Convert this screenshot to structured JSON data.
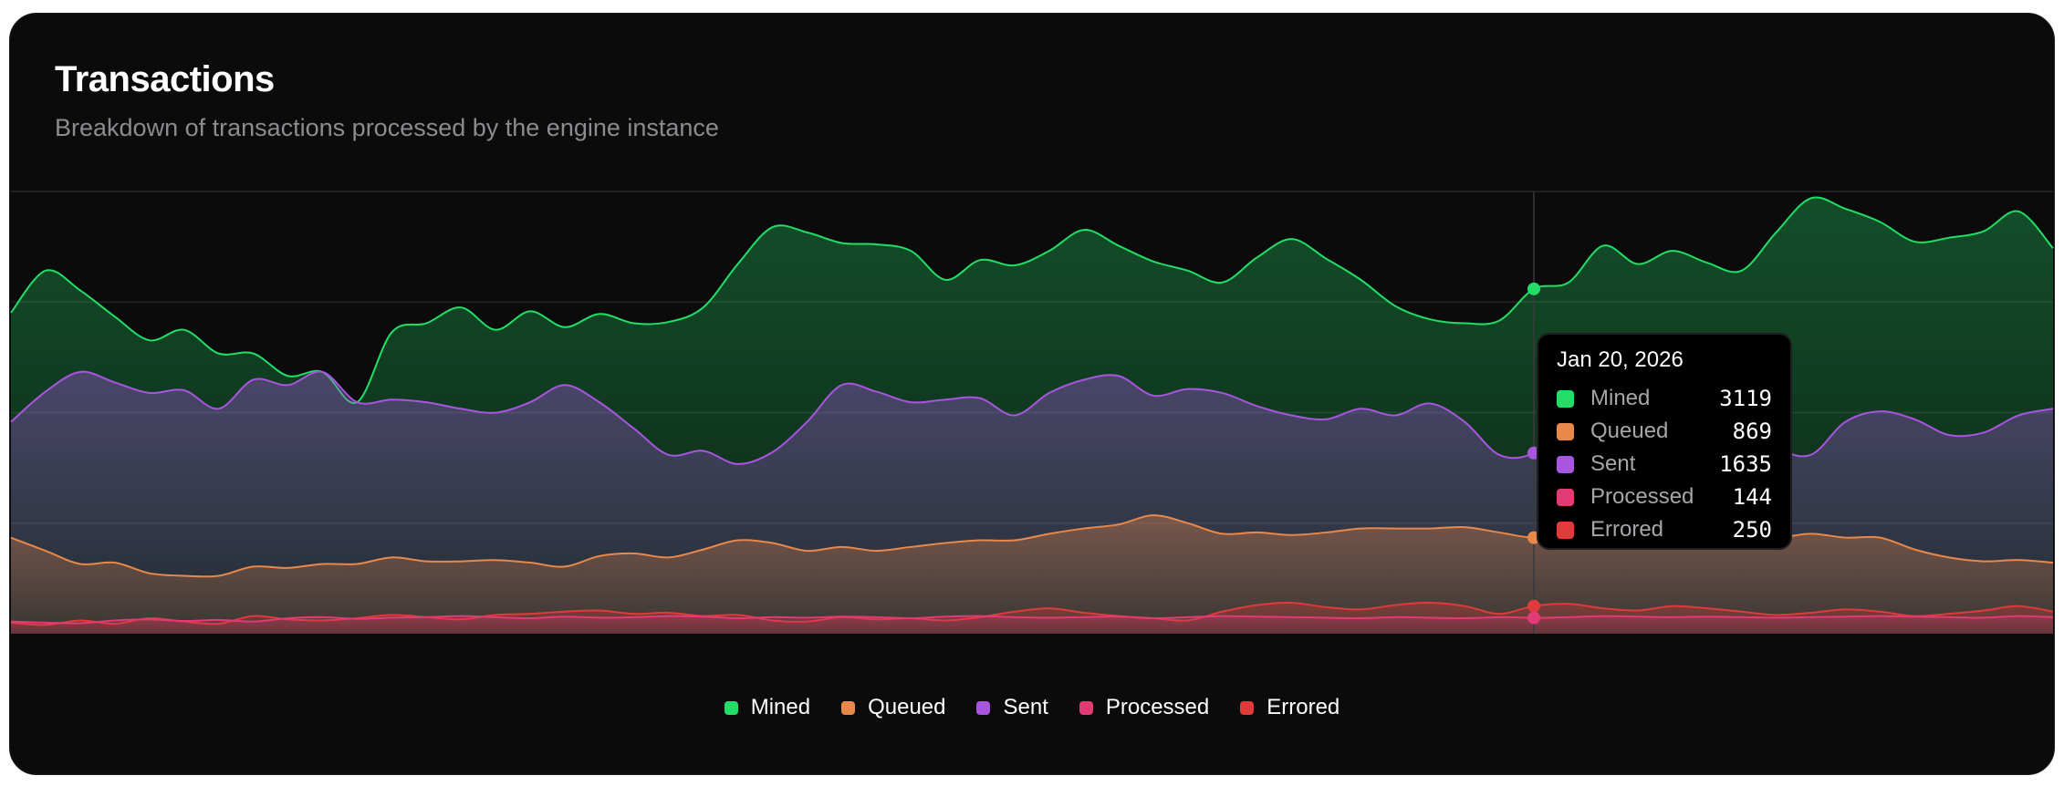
{
  "header": {
    "title": "Transactions",
    "subtitle": "Breakdown of transactions processed by the engine instance"
  },
  "chart_data": {
    "type": "area",
    "title": "Transactions",
    "xlabel": "",
    "ylabel": "",
    "ylim": [
      0,
      4000
    ],
    "grid": true,
    "legend_position": "bottom-center",
    "x": [
      0,
      1,
      2,
      3,
      4,
      5,
      6,
      7,
      8,
      9,
      10,
      11,
      12,
      13,
      14,
      15,
      16,
      17,
      18,
      19,
      20,
      21,
      22,
      23,
      24,
      25,
      26,
      27,
      28,
      29,
      30,
      31,
      32,
      33,
      34,
      35,
      36,
      37,
      38,
      39,
      40,
      41,
      42,
      43,
      44,
      45,
      46,
      47,
      48,
      49,
      50,
      51,
      52,
      53,
      54,
      55,
      56,
      57,
      58,
      59
    ],
    "series": [
      {
        "name": "Mined",
        "color": "#22dd66",
        "values": [
          2904,
          3284,
          3106,
          2868,
          2654,
          2749,
          2535,
          2535,
          2332,
          2368,
          2094,
          2725,
          2808,
          2951,
          2749,
          2916,
          2773,
          2892,
          2808,
          2820,
          2951,
          3344,
          3677,
          3630,
          3534,
          3522,
          3463,
          3201,
          3380,
          3332,
          3463,
          3653,
          3510,
          3368,
          3284,
          3177,
          3403,
          3570,
          3392,
          3201,
          2963,
          2844,
          2808,
          2832,
          3119,
          3177,
          3510,
          3344,
          3463,
          3356,
          3284,
          3630,
          3939,
          3844,
          3725,
          3546,
          3582,
          3641,
          3820,
          3487
        ]
      },
      {
        "name": "Sent",
        "color": "#a855e0",
        "values": [
          1916,
          2190,
          2368,
          2273,
          2178,
          2202,
          2035,
          2297,
          2249,
          2368,
          2094,
          2118,
          2094,
          2035,
          1999,
          2094,
          2249,
          2094,
          1856,
          1618,
          1654,
          1535,
          1642,
          1916,
          2249,
          2190,
          2094,
          2118,
          2130,
          1975,
          2178,
          2297,
          2332,
          2154,
          2213,
          2178,
          2059,
          1975,
          1940,
          2035,
          1975,
          2083,
          1916,
          1618,
          1635,
          1916,
          2094,
          2213,
          2154,
          2035,
          1856,
          1678,
          1618,
          1916,
          2011,
          1940,
          1797,
          1820,
          1975,
          2035
        ]
      },
      {
        "name": "Queued",
        "color": "#e8884a",
        "values": [
          869,
          750,
          631,
          643,
          547,
          524,
          524,
          607,
          595,
          631,
          631,
          690,
          655,
          655,
          666,
          643,
          607,
          702,
          726,
          690,
          762,
          845,
          821,
          750,
          785,
          750,
          785,
          821,
          845,
          845,
          904,
          952,
          988,
          1071,
          1000,
          904,
          916,
          893,
          916,
          952,
          952,
          952,
          964,
          916,
          869,
          904,
          916,
          952,
          988,
          964,
          904,
          869,
          904,
          869,
          869,
          762,
          690,
          655,
          667,
          643
        ]
      },
      {
        "name": "Errored",
        "color": "#e03a3a",
        "values": [
          100,
          80,
          120,
          90,
          140,
          110,
          90,
          160,
          130,
          120,
          140,
          170,
          150,
          130,
          170,
          180,
          200,
          210,
          180,
          190,
          160,
          170,
          120,
          110,
          150,
          130,
          140,
          120,
          150,
          200,
          230,
          190,
          160,
          140,
          120,
          200,
          260,
          280,
          240,
          220,
          260,
          280,
          250,
          180,
          250,
          270,
          230,
          210,
          250,
          230,
          200,
          170,
          190,
          220,
          200,
          160,
          180,
          210,
          250,
          200
        ]
      },
      {
        "name": "Processed",
        "color": "#e23a74",
        "values": [
          110,
          100,
          95,
          120,
          130,
          115,
          125,
          110,
          140,
          150,
          135,
          145,
          150,
          160,
          150,
          140,
          155,
          145,
          150,
          160,
          155,
          140,
          150,
          145,
          155,
          150,
          140,
          155,
          160,
          150,
          145,
          150,
          155,
          140,
          150,
          160,
          155,
          150,
          145,
          140,
          150,
          145,
          140,
          150,
          144,
          150,
          160,
          155,
          150,
          155,
          150,
          145,
          150,
          155,
          160,
          155,
          150,
          145,
          160,
          150
        ]
      }
    ],
    "hover_index": 44,
    "tooltip": {
      "date": "Jan 20, 2026",
      "rows": [
        {
          "label": "Mined",
          "value": "3119",
          "color": "#22dd66"
        },
        {
          "label": "Queued",
          "value": "869",
          "color": "#e8884a"
        },
        {
          "label": "Sent",
          "value": "1635",
          "color": "#a855e0"
        },
        {
          "label": "Processed",
          "value": "144",
          "color": "#e23a74"
        },
        {
          "label": "Errored",
          "value": "250",
          "color": "#e03a3a"
        }
      ]
    },
    "legend": [
      {
        "label": "Mined",
        "color": "#22dd66"
      },
      {
        "label": "Queued",
        "color": "#e8884a"
      },
      {
        "label": "Sent",
        "color": "#a855e0"
      },
      {
        "label": "Processed",
        "color": "#e23a74"
      },
      {
        "label": "Errored",
        "color": "#e03a3a"
      }
    ]
  }
}
